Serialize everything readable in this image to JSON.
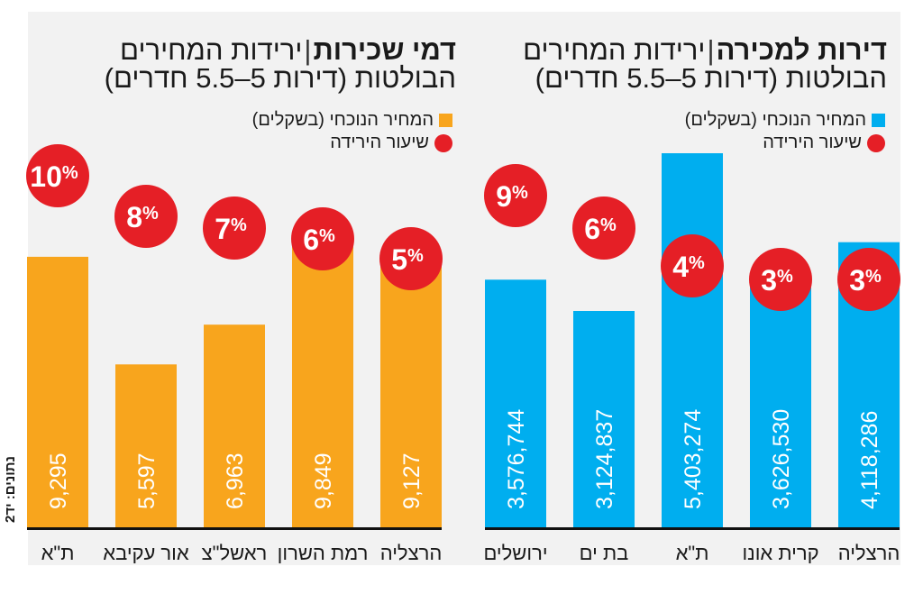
{
  "colors": {
    "background": "#f2f2f2",
    "sale_bar": "#00aeef",
    "rent_bar": "#f8a51d",
    "drop_circle": "#e51f26",
    "axis": "#111111",
    "text": "#1a1a1a",
    "bar_label": "#ffffff"
  },
  "source": "נתונים: יד2",
  "chart_data": [
    {
      "id": "sale",
      "type": "bar",
      "title_bold": "דירות למכירה",
      "title_rest": "ירידות המחירים",
      "subtitle": "הבולטות (דירות 5–5.5 חדרים)",
      "legend": [
        {
          "label": "המחיר הנוכחי (בשקלים)",
          "marker": "square",
          "color": "#00aeef"
        },
        {
          "label": "שיעור הירידה",
          "marker": "circle",
          "color": "#e51f26"
        }
      ],
      "categories": [
        "הרצליה",
        "קרית אונו",
        "ת\"א",
        "בת ים",
        "ירושלים"
      ],
      "series": [
        {
          "name": "המחיר הנוכחי (בשקלים)",
          "values": [
            4118286,
            3626530,
            5403274,
            3124837,
            3576744
          ],
          "labels": [
            "4,118,286",
            "3,626,530",
            "5,403,274",
            "3,124,837",
            "3,576,744"
          ]
        },
        {
          "name": "שיעור הירידה",
          "values": [
            3,
            3,
            4,
            6,
            9
          ],
          "labels": [
            "3%",
            "3%",
            "4%",
            "6%",
            "9%"
          ]
        }
      ],
      "order": "right-to-left",
      "ylim": [
        0,
        5403274
      ],
      "grid": false
    },
    {
      "id": "rent",
      "type": "bar",
      "title_bold": "דמי שכירות",
      "title_rest": "ירידות המחירים",
      "subtitle": "הבולטות (דירות 5–5.5 חדרים)",
      "legend": [
        {
          "label": "המחיר הנוכחי (בשקלים)",
          "marker": "square",
          "color": "#f8a51d"
        },
        {
          "label": "שיעור הירידה",
          "marker": "circle",
          "color": "#e51f26"
        }
      ],
      "categories": [
        "הרצליה",
        "רמת השרון",
        "ראשל\"צ",
        "אור עקיבא",
        "ת\"א"
      ],
      "series": [
        {
          "name": "המחיר הנוכחי (בשקלים)",
          "values": [
            9127,
            9849,
            6963,
            5597,
            9295
          ],
          "labels": [
            "9,127",
            "9,849",
            "6,963",
            "5,597",
            "9,295"
          ]
        },
        {
          "name": "שיעור הירידה",
          "values": [
            5,
            6,
            7,
            8,
            10
          ],
          "labels": [
            "5%",
            "6%",
            "7%",
            "8%",
            "10%"
          ]
        }
      ],
      "order": "right-to-left",
      "ylim": [
        0,
        9849
      ],
      "grid": false
    }
  ]
}
